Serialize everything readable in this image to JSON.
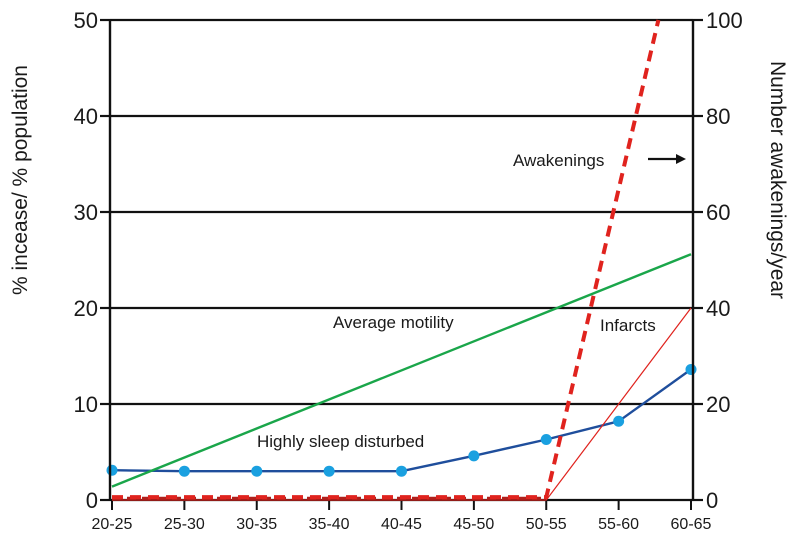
{
  "chart_data": {
    "type": "line",
    "title": "",
    "categories": [
      "20-25",
      "25-30",
      "30-35",
      "35-40",
      "40-45",
      "45-50",
      "50-55",
      "55-60",
      "60-65"
    ],
    "ylabel": "% incease/  % population",
    "y2label": "Number awakenings/year",
    "ylim": [
      0,
      50
    ],
    "y2lim": [
      0,
      100
    ],
    "yticks": [
      0,
      10,
      20,
      30,
      40,
      50
    ],
    "y2ticks": [
      0,
      20,
      40,
      60,
      80,
      100
    ],
    "grid": "horizontal",
    "series": [
      {
        "name": "Highly sleep disturbed",
        "axis": "left",
        "color": "#1f4e9c",
        "marker_color": "#1aa0e0",
        "markers": true,
        "values": [
          3.1,
          3.0,
          3.0,
          3.0,
          3.0,
          4.6,
          6.3,
          8.2,
          13.6
        ]
      },
      {
        "name": "Average motility",
        "axis": "left",
        "color": "#1aa64a",
        "values": [
          1.4,
          null,
          null,
          null,
          null,
          null,
          null,
          null,
          25.6
        ]
      },
      {
        "name": "Infarcts",
        "axis": "left",
        "color": "#e0231e",
        "values": [
          0,
          null,
          null,
          null,
          null,
          null,
          0,
          null,
          20
        ]
      },
      {
        "name": "Awakenings",
        "axis": "right",
        "color": "#e0231e",
        "dashed": true,
        "values": [
          0.6,
          null,
          null,
          null,
          null,
          null,
          0.6,
          100,
          null
        ],
        "x_positions": [
          0,
          null,
          null,
          null,
          null,
          null,
          6,
          7.55,
          null
        ]
      }
    ],
    "annotations": {
      "awakenings": "Awakenings",
      "average_motility": "Average motility",
      "infarcts": "Infarcts",
      "highly_sleep_disturbed": "Highly sleep disturbed"
    }
  }
}
